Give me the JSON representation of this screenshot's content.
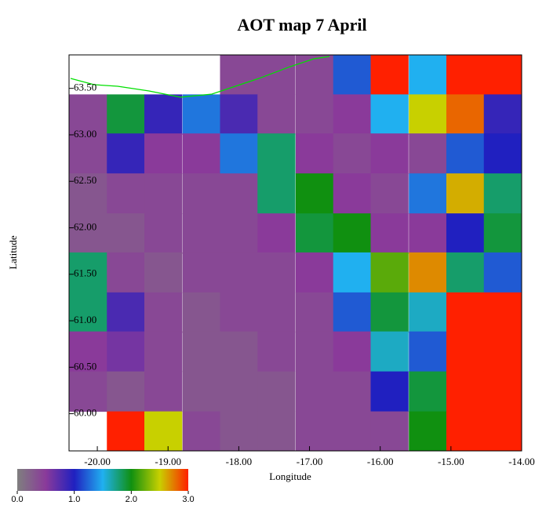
{
  "chart_data": {
    "type": "heatmap",
    "title": "AOT map 7 April",
    "x_label": "Longitude",
    "y_label": "Latitude",
    "xlim": [
      -20.4,
      -14.0
    ],
    "ylim": [
      59.6,
      63.86
    ],
    "xticks": [
      {
        "value": -20,
        "label": "-20.00"
      },
      {
        "value": -19,
        "label": "-19.00"
      },
      {
        "value": -18,
        "label": "-18.00"
      },
      {
        "value": -17,
        "label": "-17.00"
      },
      {
        "value": -16,
        "label": "-16.00"
      },
      {
        "value": -15,
        "label": "-15.00"
      },
      {
        "value": -14,
        "label": "-14.00"
      }
    ],
    "yticks": [
      {
        "value": 60,
        "label": "60.00"
      },
      {
        "value": 60.5,
        "label": "60.50"
      },
      {
        "value": 61,
        "label": "61.00"
      },
      {
        "value": 61.5,
        "label": "61.50"
      },
      {
        "value": 62,
        "label": "62.00"
      },
      {
        "value": 62.5,
        "label": "62.50"
      },
      {
        "value": 63,
        "label": "63.00"
      },
      {
        "value": 63.5,
        "label": "63.50"
      }
    ],
    "x": [
      -20.13,
      -19.6,
      -19.07,
      -18.53,
      -18.0,
      -17.47,
      -16.93,
      -16.4,
      -15.87,
      -15.33,
      -14.8,
      -14.27
    ],
    "y": [
      63.65,
      63.22,
      62.8,
      62.37,
      61.94,
      61.52,
      61.09,
      60.67,
      60.24,
      59.81
    ],
    "values": [
      [
        null,
        null,
        null,
        null,
        0.4,
        0.4,
        0.4,
        1.2,
        3.0,
        1.5,
        3.0,
        3.0
      ],
      [
        0.4,
        1.9,
        0.9,
        1.3,
        0.8,
        0.4,
        0.4,
        0.5,
        1.5,
        2.5,
        2.8,
        0.9
      ],
      [
        0.4,
        0.9,
        0.5,
        0.5,
        1.3,
        1.8,
        0.5,
        0.4,
        0.5,
        0.4,
        1.2,
        1.0
      ],
      [
        0.3,
        0.4,
        0.4,
        0.4,
        0.4,
        1.8,
        2.0,
        0.5,
        0.4,
        1.3,
        2.6,
        1.8
      ],
      [
        0.3,
        0.3,
        0.4,
        0.4,
        0.4,
        0.5,
        1.9,
        2.0,
        0.5,
        0.5,
        1.0,
        1.9
      ],
      [
        1.8,
        0.4,
        0.3,
        0.4,
        0.4,
        0.4,
        0.5,
        1.5,
        2.2,
        2.7,
        1.8,
        1.2
      ],
      [
        1.8,
        0.8,
        0.4,
        0.3,
        0.4,
        0.4,
        0.4,
        1.2,
        1.9,
        1.6,
        3.0,
        3.0
      ],
      [
        0.5,
        0.6,
        0.4,
        0.3,
        0.3,
        0.4,
        0.4,
        0.5,
        1.6,
        1.2,
        3.0,
        3.0
      ],
      [
        0.4,
        0.3,
        0.4,
        0.3,
        0.3,
        0.3,
        0.4,
        0.4,
        1.0,
        1.9,
        3.0,
        3.0
      ],
      [
        null,
        3.0,
        2.5,
        0.4,
        0.3,
        0.3,
        0.4,
        0.4,
        0.4,
        2.0,
        3.0,
        3.0
      ]
    ],
    "clim": [
      0,
      3
    ],
    "cticks": [
      {
        "value": 0,
        "label": "0.0"
      },
      {
        "value": 1,
        "label": "1.0"
      },
      {
        "value": 2,
        "label": "2.0"
      },
      {
        "value": 3,
        "label": "3.0"
      }
    ],
    "colormap": [
      "#7f7f7f",
      "#8a3a9a",
      "#2020c0",
      "#20b0f0",
      "#109010",
      "#c8d000",
      "#ff2000"
    ]
  }
}
